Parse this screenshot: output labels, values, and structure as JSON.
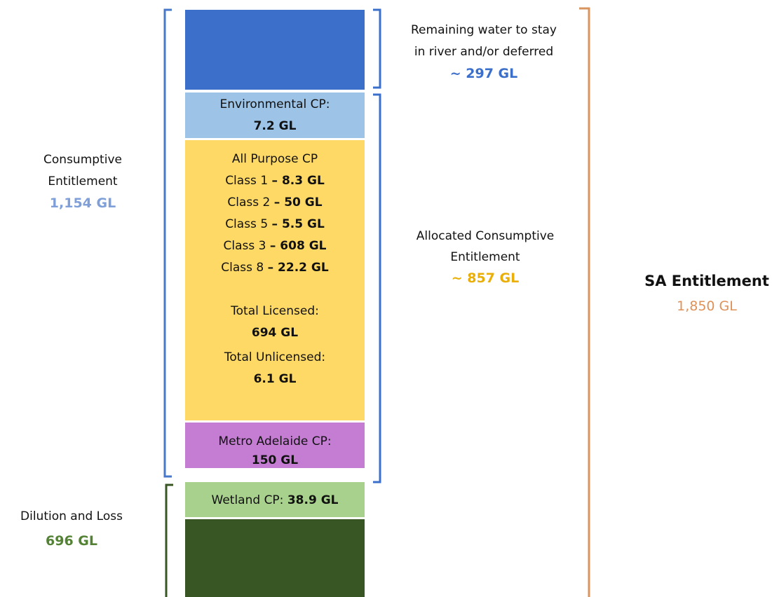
{
  "remaining": {
    "lines": [
      "Remaining water to stay",
      "in river and/or deferred"
    ],
    "value": "~ 297 GL"
  },
  "environmental_cp": {
    "label": "Environmental CP:",
    "value": "7.2 GL"
  },
  "all_purpose_cp": {
    "title": "All Purpose CP",
    "classes": [
      {
        "label": "Class 1",
        "value": "– 8.3 GL"
      },
      {
        "label": "Class 2",
        "value": "– 50 GL"
      },
      {
        "label": "Class 5",
        "value": "– 5.5 GL"
      },
      {
        "label": "Class 3",
        "value": "– 608 GL"
      },
      {
        "label": "Class 8",
        "value": "– 22.2 GL"
      }
    ],
    "total_licensed": {
      "label": "Total Licensed:",
      "value": "694 GL"
    },
    "total_unlicensed": {
      "label": "Total Unlicensed:",
      "value": "6.1 GL"
    }
  },
  "metro_adelaide_cp": {
    "label": "Metro Adelaide CP:",
    "value": "150 GL"
  },
  "wetland_cp": {
    "label": "Wetland CP:",
    "value": "38.9 GL"
  },
  "consumptive_entitlement": {
    "lines": [
      "Consumptive",
      "Entitlement"
    ],
    "value": "1,154 GL"
  },
  "allocated_consumptive_entitlement": {
    "lines": [
      "Allocated Consumptive",
      "Entitlement"
    ],
    "value": "~ 857 GL"
  },
  "sa_entitlement": {
    "label": "SA Entitlement",
    "value": "1,850 GL"
  },
  "dilution_and_loss": {
    "label": "Dilution and Loss",
    "value": "696 GL"
  }
}
